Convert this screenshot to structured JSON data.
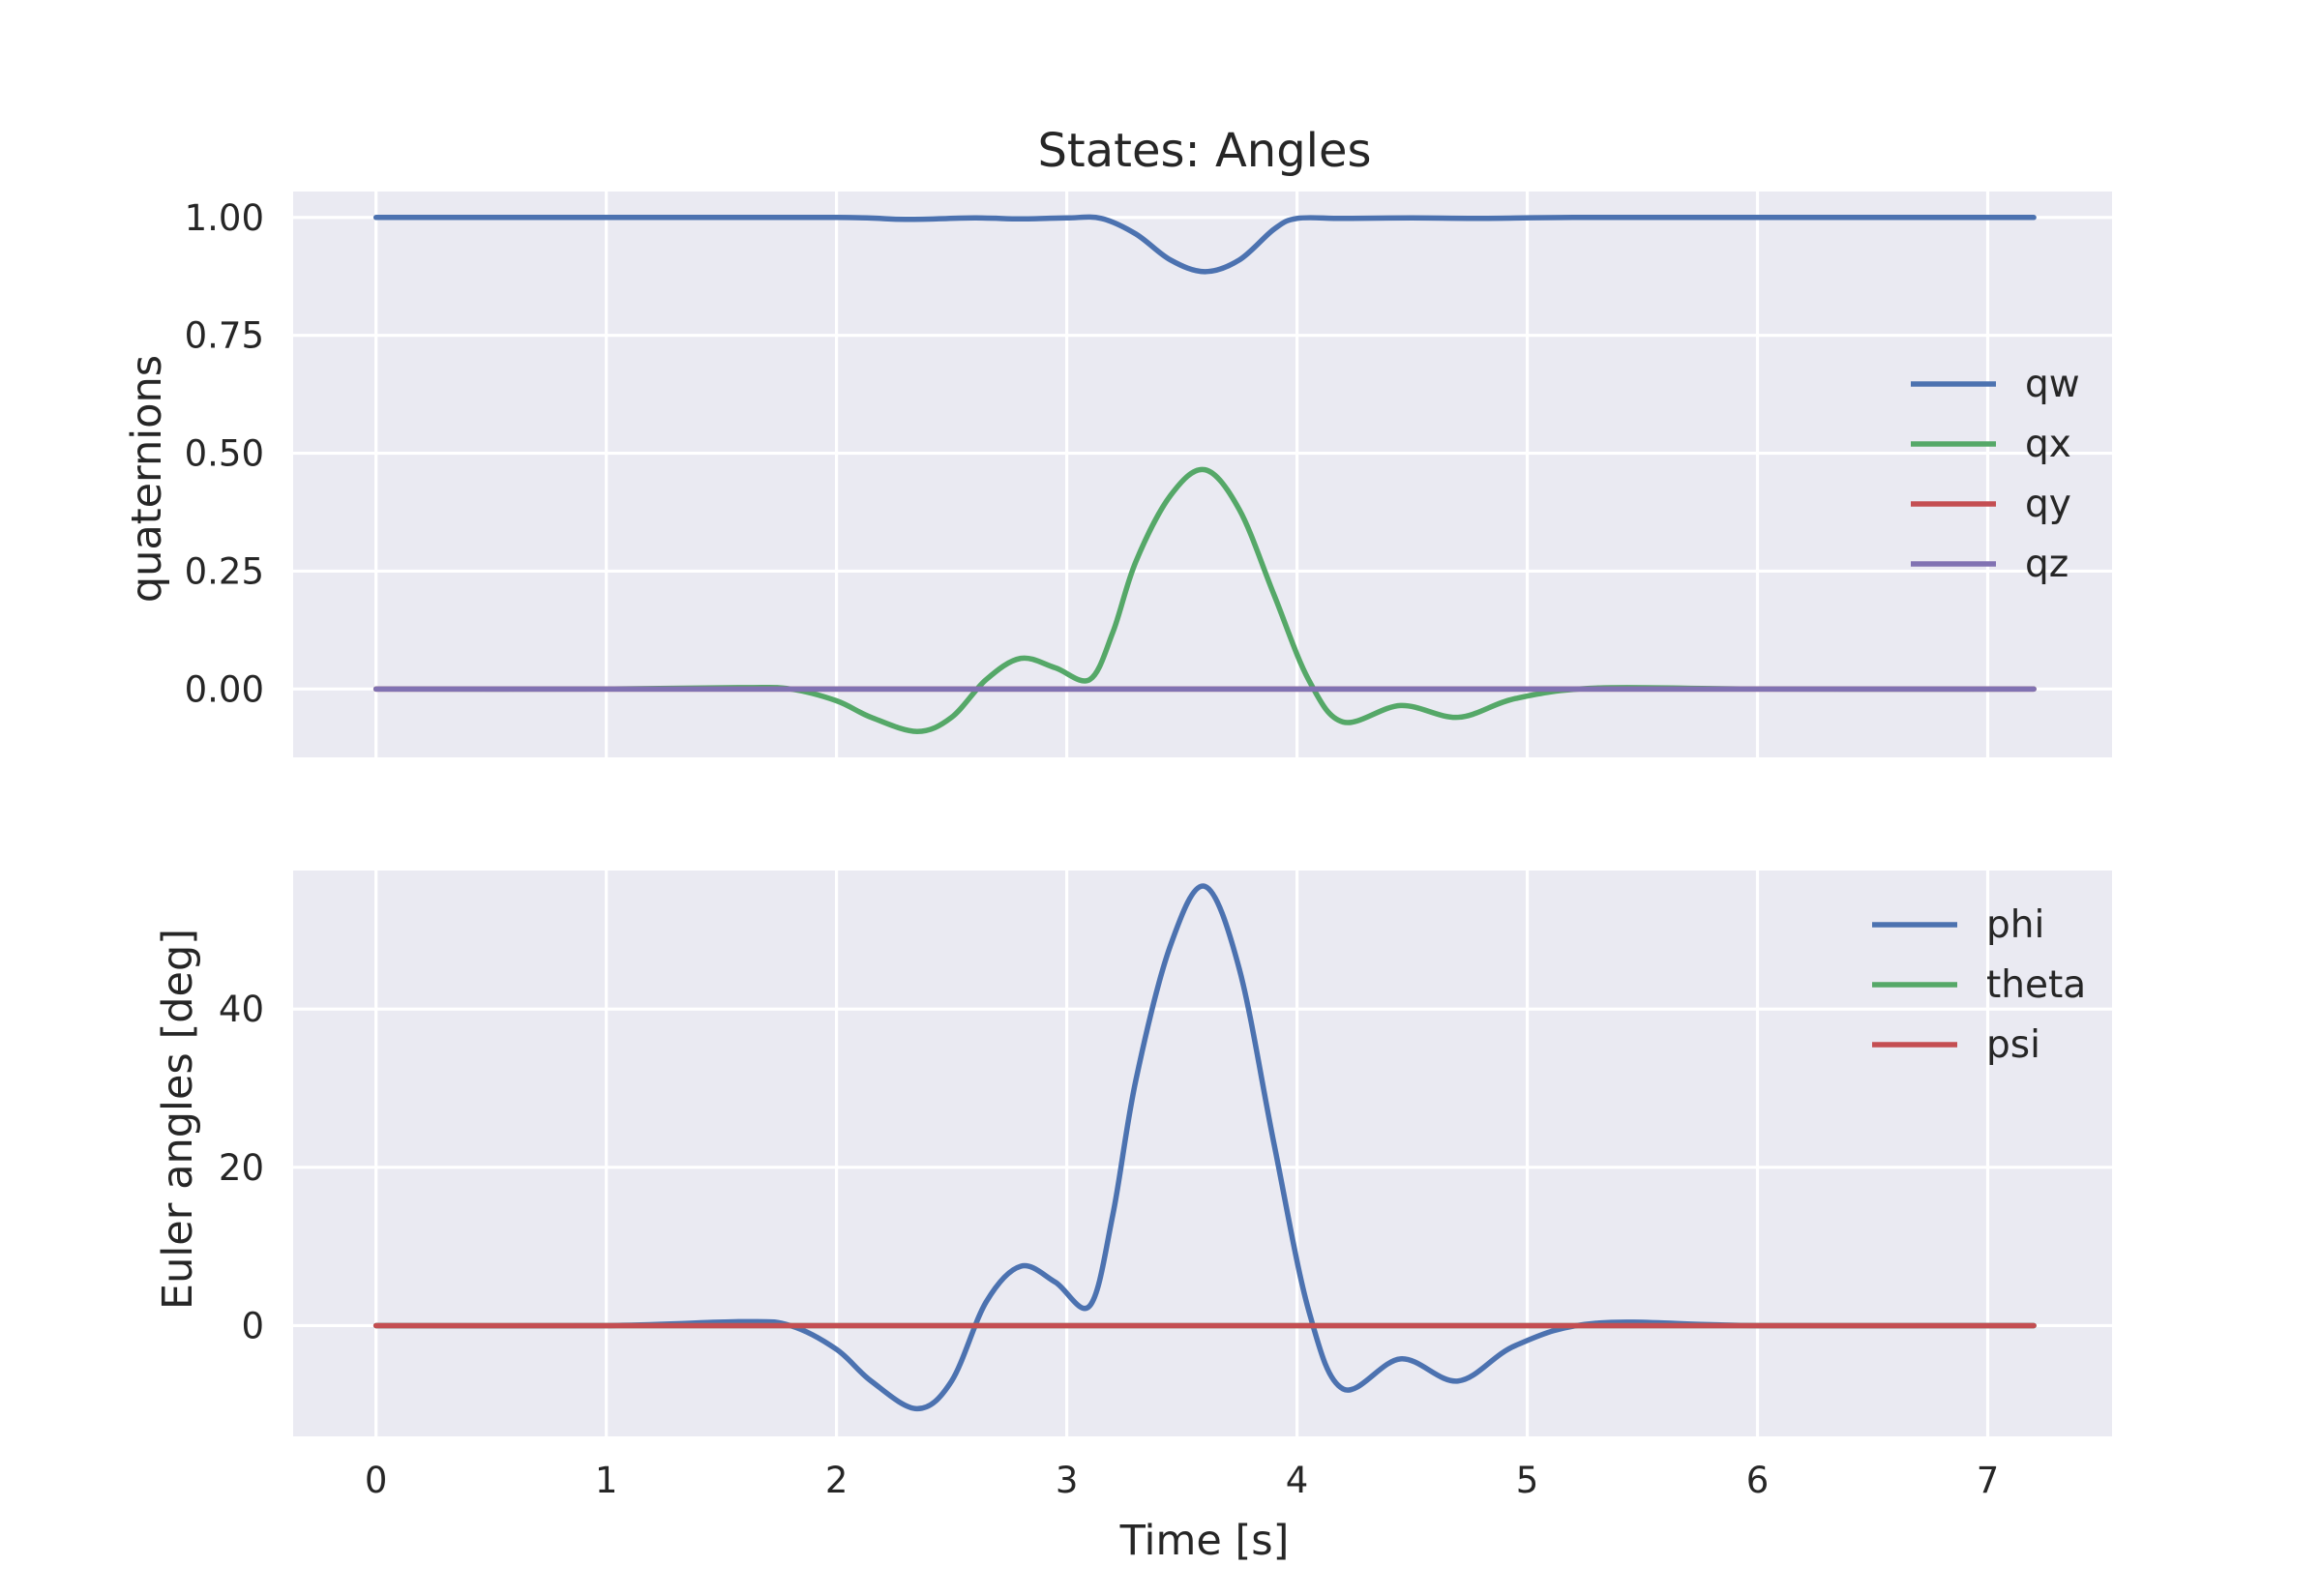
{
  "chart_data": [
    {
      "type": "line",
      "title": "States: Angles",
      "xlabel": "",
      "ylabel": "quaternions",
      "xlim": [
        -0.36,
        7.54
      ],
      "ylim": [
        -0.145,
        1.055
      ],
      "xticks": [
        0,
        1,
        2,
        3,
        4,
        5,
        6,
        7
      ],
      "show_xtick_labels": false,
      "yticks": [
        0.0,
        0.25,
        0.5,
        0.75,
        1.0
      ],
      "ytick_labels": [
        "0.00",
        "0.25",
        "0.50",
        "0.75",
        "1.00"
      ],
      "grid": true,
      "legend_position": "center-right",
      "series": [
        {
          "name": "qw",
          "color": "#4c72b0",
          "x": [
            0,
            1.0,
            2.0,
            2.3,
            2.6,
            2.8,
            3.0,
            3.15,
            3.3,
            3.45,
            3.6,
            3.75,
            3.9,
            4.0,
            4.2,
            4.5,
            4.8,
            5.2,
            6.0,
            7.2
          ],
          "y": [
            1.0,
            1.0,
            1.0,
            0.996,
            0.999,
            0.997,
            0.999,
            0.998,
            0.965,
            0.91,
            0.885,
            0.91,
            0.975,
            0.998,
            0.998,
            0.999,
            0.998,
            1.0,
            1.0,
            1.0
          ]
        },
        {
          "name": "qx",
          "color": "#55a868",
          "x": [
            0,
            1.0,
            1.6,
            1.8,
            2.0,
            2.15,
            2.35,
            2.5,
            2.65,
            2.8,
            2.95,
            3.1,
            3.2,
            3.3,
            3.45,
            3.6,
            3.75,
            3.9,
            4.05,
            4.2,
            4.45,
            4.7,
            4.95,
            5.3,
            6.0,
            7.2
          ],
          "y": [
            0.0,
            0.0,
            0.003,
            0.0,
            -0.025,
            -0.06,
            -0.09,
            -0.06,
            0.02,
            0.065,
            0.045,
            0.02,
            0.12,
            0.27,
            0.41,
            0.465,
            0.38,
            0.2,
            0.02,
            -0.07,
            -0.035,
            -0.06,
            -0.02,
            0.002,
            0.0,
            0.0
          ]
        },
        {
          "name": "qy",
          "color": "#c44e52",
          "x": [
            0,
            7.2
          ],
          "y": [
            0.0,
            0.0
          ]
        },
        {
          "name": "qz",
          "color": "#8172b2",
          "x": [
            0,
            7.2
          ],
          "y": [
            0.0,
            0.0
          ]
        }
      ]
    },
    {
      "type": "line",
      "title": "",
      "xlabel": "Time [s]",
      "ylabel": "Euler angles [deg]",
      "xlim": [
        -0.36,
        7.54
      ],
      "ylim": [
        -14.0,
        57.5
      ],
      "xticks": [
        0,
        1,
        2,
        3,
        4,
        5,
        6,
        7
      ],
      "xtick_labels": [
        "0",
        "1",
        "2",
        "3",
        "4",
        "5",
        "6",
        "7"
      ],
      "show_xtick_labels": true,
      "yticks": [
        0,
        20,
        40
      ],
      "ytick_labels": [
        "0",
        "20",
        "40"
      ],
      "grid": true,
      "legend_position": "top-right",
      "series": [
        {
          "name": "phi",
          "color": "#4c72b0",
          "x": [
            0,
            1.0,
            1.6,
            1.8,
            2.0,
            2.15,
            2.35,
            2.5,
            2.65,
            2.8,
            2.95,
            3.1,
            3.2,
            3.3,
            3.45,
            3.6,
            3.75,
            3.9,
            4.05,
            4.2,
            4.45,
            4.7,
            4.95,
            5.3,
            6.0,
            7.2
          ],
          "y": [
            0.0,
            0.0,
            0.5,
            0.0,
            -3.0,
            -7.0,
            -10.5,
            -7.0,
            3.0,
            7.5,
            5.5,
            2.5,
            14.0,
            31.0,
            48.0,
            55.5,
            45.0,
            23.0,
            2.0,
            -8.0,
            -4.2,
            -7.0,
            -2.5,
            0.3,
            0.0,
            0.0
          ]
        },
        {
          "name": "theta",
          "color": "#55a868",
          "x": [
            0,
            7.2
          ],
          "y": [
            0.0,
            0.0
          ]
        },
        {
          "name": "psi",
          "color": "#c44e52",
          "x": [
            0,
            7.2
          ],
          "y": [
            0.0,
            0.0
          ]
        }
      ]
    }
  ]
}
